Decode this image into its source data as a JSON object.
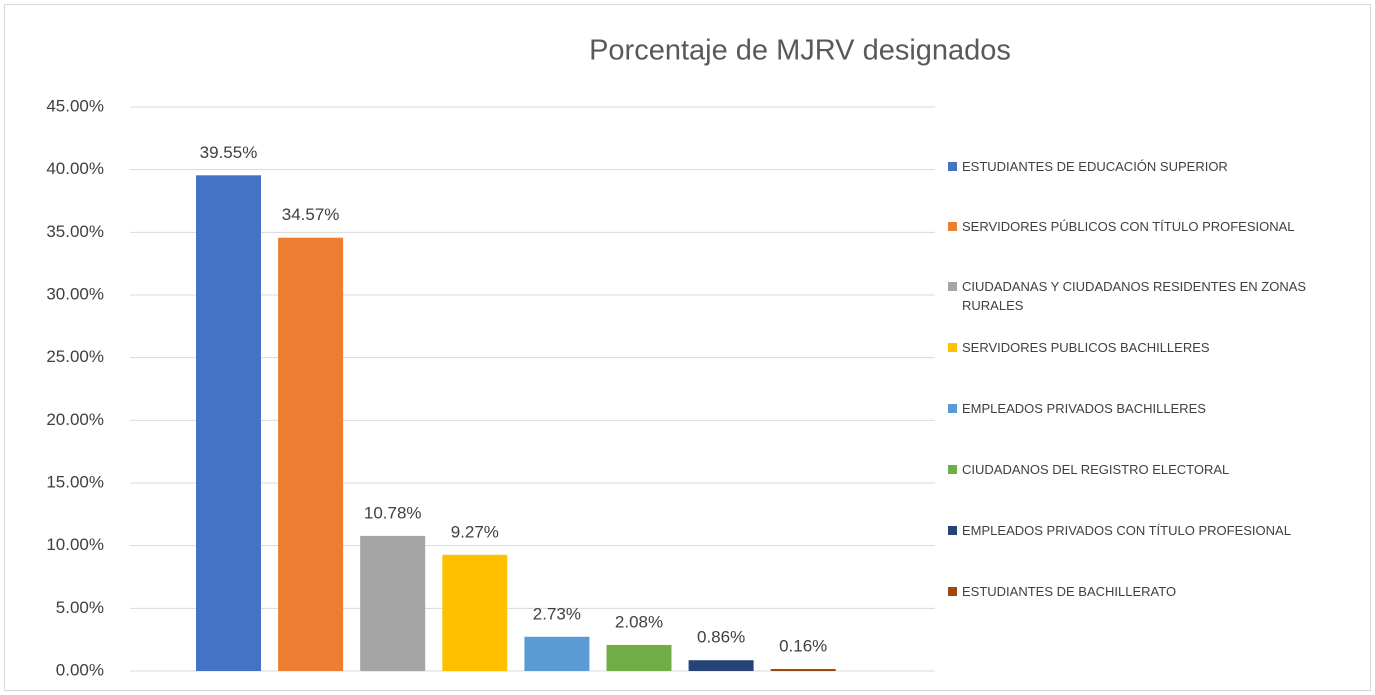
{
  "chart_data": {
    "type": "bar",
    "title": "Porcentaje de MJRV designados",
    "series": [
      {
        "name": "ESTUDIANTES DE EDUCACIÓN SUPERIOR",
        "color": "#4472c4",
        "values": [
          39.55
        ],
        "value_labels": [
          "39.55%"
        ]
      },
      {
        "name": "SERVIDORES PÚBLICOS CON TÍTULO PROFESIONAL",
        "color": "#ed7d31",
        "values": [
          34.57
        ],
        "value_labels": [
          "34.57%"
        ]
      },
      {
        "name": "CIUDADANAS Y CIUDADANOS RESIDENTES EN ZONAS RURALES",
        "color": "#a5a5a5",
        "values": [
          10.78
        ],
        "value_labels": [
          "10.78%"
        ]
      },
      {
        "name": "SERVIDORES PUBLICOS BACHILLERES",
        "color": "#ffc000",
        "values": [
          9.27
        ],
        "value_labels": [
          "9.27%"
        ]
      },
      {
        "name": "EMPLEADOS PRIVADOS BACHILLERES",
        "color": "#5b9bd5",
        "values": [
          2.73
        ],
        "value_labels": [
          "2.73%"
        ]
      },
      {
        "name": "CIUDADANOS DEL REGISTRO ELECTORAL",
        "color": "#70ad47",
        "values": [
          2.08
        ],
        "value_labels": [
          "2.08%"
        ]
      },
      {
        "name": "EMPLEADOS PRIVADOS CON TÍTULO PROFESIONAL",
        "color": "#264478",
        "values": [
          0.86
        ],
        "value_labels": [
          "0.86%"
        ]
      },
      {
        "name": "ESTUDIANTES DE BACHILLERATO",
        "color": "#9e480e",
        "values": [
          0.16
        ],
        "value_labels": [
          "0.16%"
        ]
      }
    ],
    "ylim": [
      0,
      45
    ],
    "yticks": [
      {
        "value": 0,
        "label": "0.00%"
      },
      {
        "value": 5,
        "label": "5.00%"
      },
      {
        "value": 10,
        "label": "10.00%"
      },
      {
        "value": 15,
        "label": "15.00%"
      },
      {
        "value": 20,
        "label": "20.00%"
      },
      {
        "value": 25,
        "label": "25.00%"
      },
      {
        "value": 30,
        "label": "30.00%"
      },
      {
        "value": 35,
        "label": "35.00%"
      },
      {
        "value": 40,
        "label": "40.00%"
      },
      {
        "value": 45,
        "label": "45.00%"
      }
    ],
    "grid": true,
    "legend": "right"
  }
}
